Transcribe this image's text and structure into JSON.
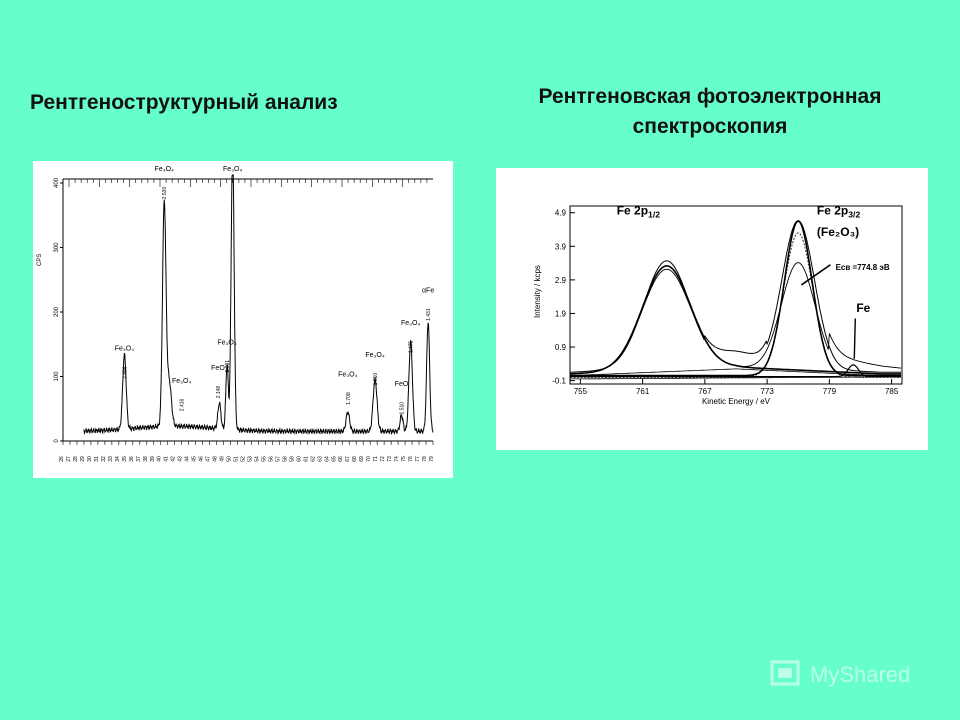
{
  "slide": {
    "title_left": "Рентгеноструктурный анализ",
    "title_right_line1": "Рентгеновская фотоэлектронная",
    "title_right_line2": "спектроскопия",
    "watermark": "MyShared"
  },
  "chart_data": [
    {
      "type": "line",
      "name": "xrd",
      "ylabel": "CPS",
      "ylim": [
        0,
        400
      ],
      "yticks": [
        0,
        100,
        200,
        300,
        400
      ],
      "xticks": [
        "26",
        "27",
        "28",
        "29",
        "30",
        "31",
        "32",
        "33",
        "34",
        "35",
        "36",
        "37",
        "38",
        "39",
        "40",
        "41",
        "42",
        "43",
        "44",
        "45",
        "46",
        "47",
        "48",
        "49",
        "50",
        "51",
        "52",
        "53",
        "54",
        "55",
        "56",
        "57",
        "58",
        "59",
        "60",
        "61",
        "62",
        "63",
        "64",
        "65",
        "66",
        "67",
        "68",
        "69",
        "70",
        "71",
        "72",
        "73",
        "74",
        "75",
        "76",
        "77",
        "78",
        "79"
      ],
      "xlim": [
        26,
        79
      ],
      "curve": {
        "baseline": 15,
        "peaks": [
          {
            "x": 34.8,
            "h": 115,
            "w": 0.35
          },
          {
            "x": 40.5,
            "h": 345,
            "w": 0.35
          },
          {
            "x": 41.2,
            "h": 70,
            "w": 0.45
          },
          {
            "x": 48.4,
            "h": 40,
            "w": 0.3
          },
          {
            "x": 49.5,
            "h": 100,
            "w": 0.25
          },
          {
            "x": 50.3,
            "h": 440,
            "w": 0.3
          },
          {
            "x": 66.8,
            "h": 30,
            "w": 0.35
          },
          {
            "x": 70.7,
            "h": 80,
            "w": 0.4
          },
          {
            "x": 74.5,
            "h": 25,
            "w": 0.3
          },
          {
            "x": 75.8,
            "h": 140,
            "w": 0.35
          },
          {
            "x": 78.3,
            "h": 170,
            "w": 0.3
          }
        ]
      },
      "peak_labels": [
        {
          "x": 34.8,
          "y": 140,
          "formula": "Fe₃O₄",
          "d": "2.956"
        },
        {
          "x": 40.5,
          "y": 440,
          "formula": "Fe₃O₄",
          "d": "2.530"
        },
        {
          "x": 43.0,
          "y": 90,
          "formula": "Fe₃O₄",
          "d": "2.416"
        },
        {
          "x": 48.2,
          "y": 110,
          "formula": "FeO",
          "d": "2.148"
        },
        {
          "x": 49.5,
          "y": 150,
          "formula": "Fe₃O₄",
          "d": "2.091"
        },
        {
          "x": 50.3,
          "y": 440,
          "formula": "Fe₃O₄",
          "d": ""
        },
        {
          "x": 66.8,
          "y": 100,
          "formula": "Fe₃O₄",
          "d": "1.708"
        },
        {
          "x": 70.7,
          "y": 130,
          "formula": "Fe₃O₄",
          "d": "1.610"
        },
        {
          "x": 74.5,
          "y": 85,
          "formula": "FeO",
          "d": "1.510"
        },
        {
          "x": 75.8,
          "y": 180,
          "formula": "Fe₃O₄",
          "d": "1.475"
        },
        {
          "x": 78.3,
          "y": 230,
          "formula": "αFe",
          "d": "1.431"
        }
      ]
    },
    {
      "type": "line",
      "name": "xps",
      "xlabel": "Kinetic Energy / eV",
      "ylabel": "Intensity / kcps",
      "xlim": [
        754,
        786
      ],
      "ylim": [
        -0.2,
        5.1
      ],
      "xticks": [
        755,
        761,
        767,
        773,
        779,
        785
      ],
      "yticks": [
        4.9,
        3.9,
        2.9,
        1.9,
        0.9,
        -0.1
      ],
      "annotations": [
        {
          "text": "Fe 2p",
          "sub": "1/2",
          "x": 758.5,
          "y": 4.85
        },
        {
          "text": "Fe 2p",
          "sub": "3/2",
          "x": 777.8,
          "y": 4.85
        },
        {
          "text": "(Fe₂O₃)",
          "x": 777.8,
          "y": 4.2
        },
        {
          "text": "Eсв =774.8 эВ",
          "x": 779.6,
          "y": 3.2
        },
        {
          "text": "Fe",
          "x": 781.6,
          "y": 1.95
        }
      ]
    }
  ]
}
